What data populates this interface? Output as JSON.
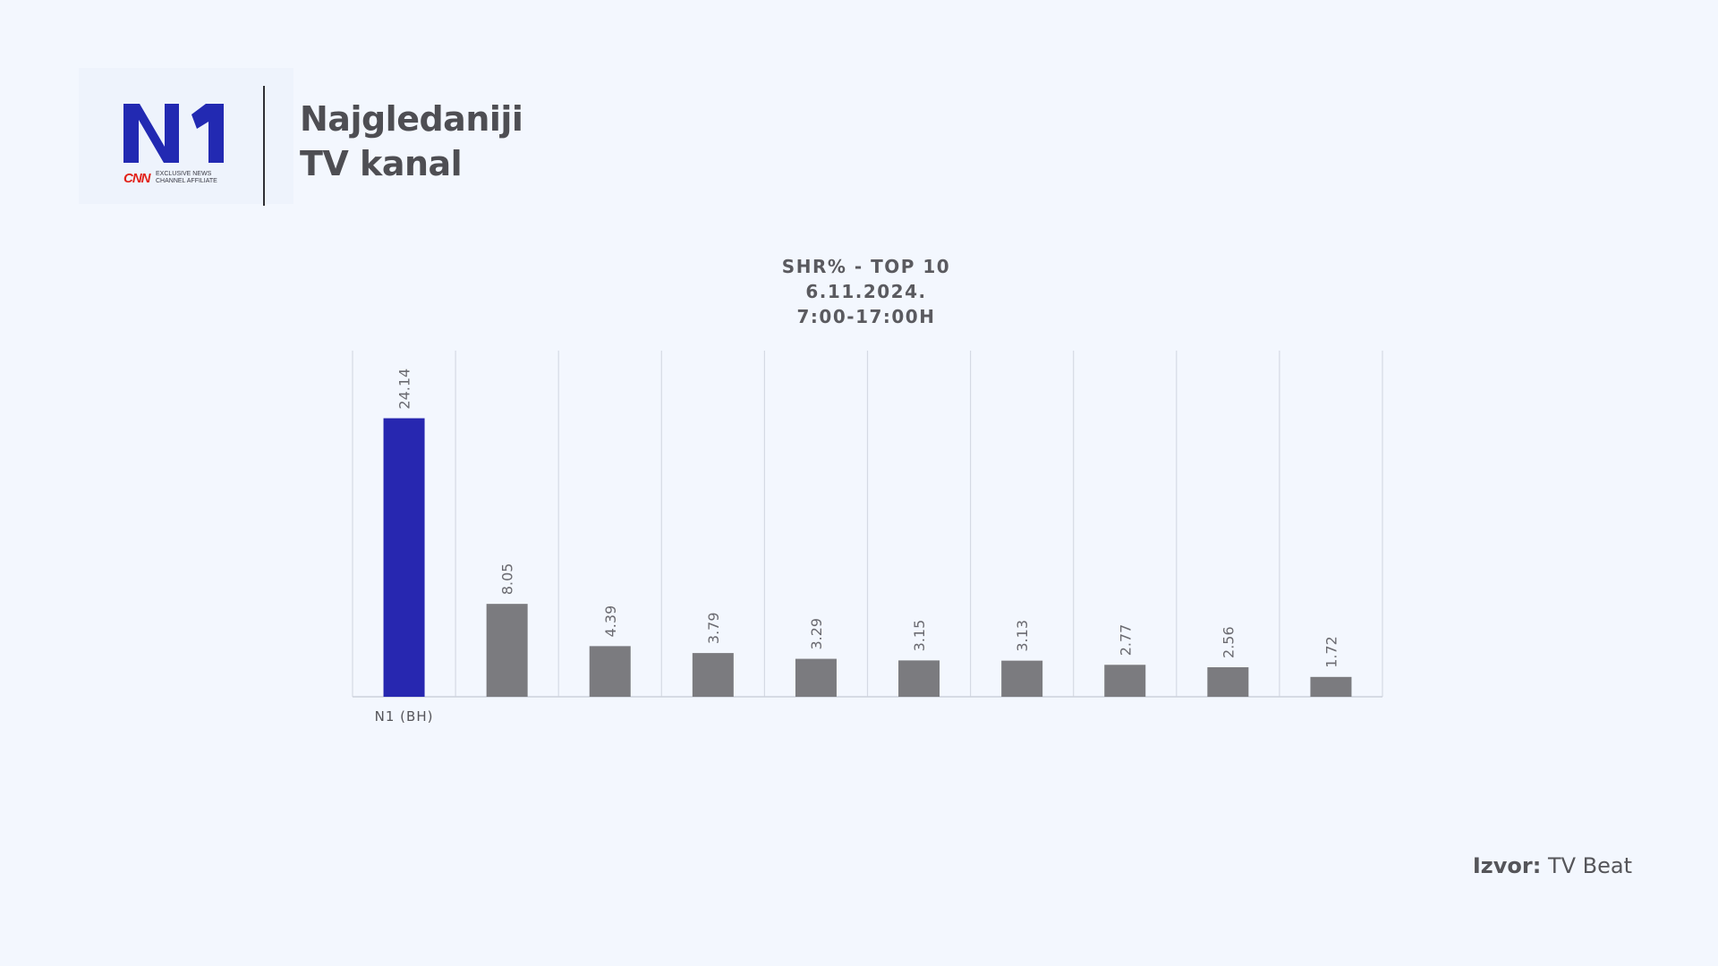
{
  "header": {
    "headline_line1": "Najgledaniji",
    "headline_line2": "TV kanal"
  },
  "logo": {
    "mark": "N1",
    "partner": "CNN",
    "tagline_line1": "EXCLUSIVE NEWS",
    "tagline_line2": "CHANNEL AFFILIATE",
    "brand_color": "#2229b2",
    "partner_color": "#e2231a"
  },
  "chart_title": {
    "line1": "SHR% - TOP 10",
    "line2": "6.11.2024.",
    "line3": "7:00-17:00H"
  },
  "chart_data": {
    "type": "bar",
    "title": "SHR% - TOP 10",
    "categories": [
      "N1 (BH)",
      "",
      "",
      "",
      "",
      "",
      "",
      "",
      "",
      ""
    ],
    "values": [
      24.14,
      8.05,
      4.39,
      3.79,
      3.29,
      3.15,
      3.13,
      2.77,
      2.56,
      1.72
    ],
    "data_labels": [
      "24.14",
      "8.05",
      "4.39",
      "3.79",
      "3.29",
      "3.15",
      "3.13",
      "2.77",
      "2.56",
      "1.72"
    ],
    "ylim": [
      0,
      30
    ],
    "highlight_index": 0,
    "highlight_color": "#2727b0",
    "bar_color": "#7b7b7f",
    "grid": true,
    "xlabel": "",
    "ylabel": ""
  },
  "source": {
    "label": "Izvor:",
    "value": "TV Beat"
  }
}
